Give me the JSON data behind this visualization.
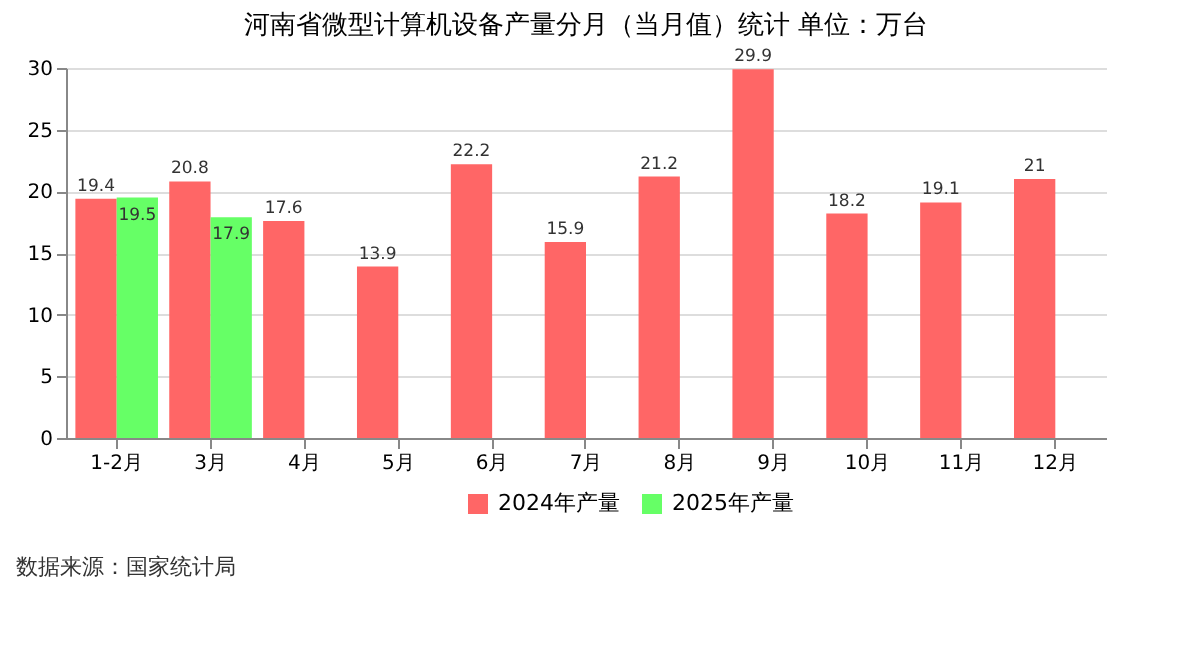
{
  "chart_data": {
    "type": "bar",
    "title": "河南省微型计算机设备产量分月（当月值）统计  单位：万台",
    "categories": [
      "1-2月",
      "3月",
      "4月",
      "5月",
      "6月",
      "7月",
      "8月",
      "9月",
      "10月",
      "11月",
      "12月"
    ],
    "series": [
      {
        "name": "2024年产量",
        "color": "#ff6666",
        "values": [
          19.4,
          20.8,
          17.6,
          13.9,
          22.2,
          15.9,
          21.2,
          29.9,
          18.2,
          19.1,
          21
        ]
      },
      {
        "name": "2025年产量",
        "color": "#66ff66",
        "values": [
          19.5,
          17.9,
          null,
          null,
          null,
          null,
          null,
          null,
          null,
          null,
          null
        ]
      }
    ],
    "ylim": [
      0,
      30
    ],
    "yticks": [
      0,
      5,
      10,
      15,
      20,
      25,
      30
    ],
    "grid": "y",
    "legend": "bottom",
    "data_labels": true,
    "annotations": [
      "数据来源：国家统计局"
    ]
  }
}
